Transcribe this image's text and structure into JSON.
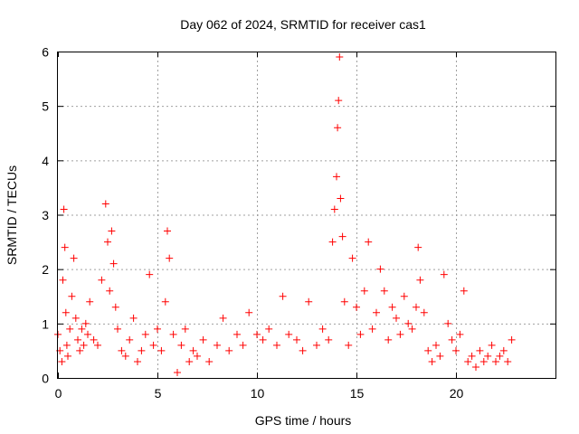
{
  "chart_data": {
    "type": "scatter",
    "title": "Day 062 of 2024, SRMTID for receiver cas1",
    "xlabel": "GPS time / hours",
    "ylabel": "SRMTID / TECUs",
    "xlim": [
      0,
      25
    ],
    "ylim": [
      0,
      6
    ],
    "xticks": [
      0,
      5,
      10,
      15,
      20
    ],
    "yticks": [
      0,
      1,
      2,
      3,
      4,
      5,
      6
    ],
    "xtick_labels": [
      "0",
      "5",
      "10",
      "15",
      "20"
    ],
    "ytick_labels": [
      "0",
      "1",
      "2",
      "3",
      "4",
      "5",
      "6"
    ],
    "grid": true,
    "marker": "+",
    "series": [
      {
        "name": "SRMTID",
        "color": "#ff0000",
        "x": [
          0.0,
          0.1,
          0.2,
          0.25,
          0.3,
          0.35,
          0.4,
          0.45,
          0.5,
          0.6,
          0.7,
          0.8,
          0.9,
          1.0,
          1.1,
          1.2,
          1.3,
          1.4,
          1.5,
          1.6,
          1.8,
          2.0,
          2.2,
          2.4,
          2.5,
          2.6,
          2.7,
          2.8,
          2.9,
          3.0,
          3.2,
          3.4,
          3.6,
          3.8,
          4.0,
          4.2,
          4.4,
          4.6,
          4.8,
          5.0,
          5.2,
          5.4,
          5.5,
          5.6,
          5.8,
          6.0,
          6.2,
          6.4,
          6.6,
          6.8,
          7.0,
          7.3,
          7.6,
          8.0,
          8.3,
          8.6,
          9.0,
          9.3,
          9.6,
          10.0,
          10.3,
          10.6,
          11.0,
          11.3,
          11.6,
          12.0,
          12.3,
          12.6,
          13.0,
          13.3,
          13.6,
          13.8,
          13.9,
          14.0,
          14.05,
          14.1,
          14.15,
          14.2,
          14.3,
          14.4,
          14.6,
          14.8,
          15.0,
          15.2,
          15.4,
          15.6,
          15.8,
          16.0,
          16.2,
          16.4,
          16.6,
          16.8,
          17.0,
          17.2,
          17.4,
          17.6,
          17.8,
          18.0,
          18.1,
          18.2,
          18.4,
          18.6,
          18.8,
          19.0,
          19.2,
          19.4,
          19.6,
          19.8,
          20.0,
          20.2,
          20.4,
          20.6,
          20.8,
          21.0,
          21.2,
          21.4,
          21.6,
          21.8,
          22.0,
          22.2,
          22.4,
          22.6,
          22.8
        ],
        "y": [
          0.8,
          0.5,
          0.3,
          1.8,
          3.1,
          2.4,
          1.2,
          0.6,
          0.4,
          0.9,
          1.5,
          2.2,
          1.1,
          0.7,
          0.5,
          0.9,
          0.6,
          1.0,
          0.8,
          1.4,
          0.7,
          0.6,
          1.8,
          3.2,
          2.5,
          1.6,
          2.7,
          2.1,
          1.3,
          0.9,
          0.5,
          0.4,
          0.7,
          1.1,
          0.3,
          0.5,
          0.8,
          1.9,
          0.6,
          0.9,
          0.5,
          1.4,
          2.7,
          2.2,
          0.8,
          0.1,
          0.6,
          0.9,
          0.3,
          0.5,
          0.4,
          0.7,
          0.3,
          0.6,
          1.1,
          0.5,
          0.8,
          0.6,
          1.2,
          0.8,
          0.7,
          0.9,
          0.6,
          1.5,
          0.8,
          0.7,
          0.5,
          1.4,
          0.6,
          0.9,
          0.7,
          2.5,
          3.1,
          3.7,
          4.6,
          5.1,
          5.9,
          3.3,
          2.6,
          1.4,
          0.6,
          2.2,
          1.3,
          0.8,
          1.6,
          2.5,
          0.9,
          1.2,
          2.0,
          1.6,
          0.7,
          1.3,
          1.1,
          0.8,
          1.5,
          1.0,
          0.9,
          1.3,
          2.4,
          1.8,
          1.2,
          0.5,
          0.3,
          0.6,
          0.4,
          1.9,
          1.0,
          0.7,
          0.5,
          0.8,
          1.6,
          0.3,
          0.4,
          0.2,
          0.5,
          0.3,
          0.4,
          0.6,
          0.3,
          0.4,
          0.5,
          0.3,
          0.7
        ]
      }
    ]
  }
}
